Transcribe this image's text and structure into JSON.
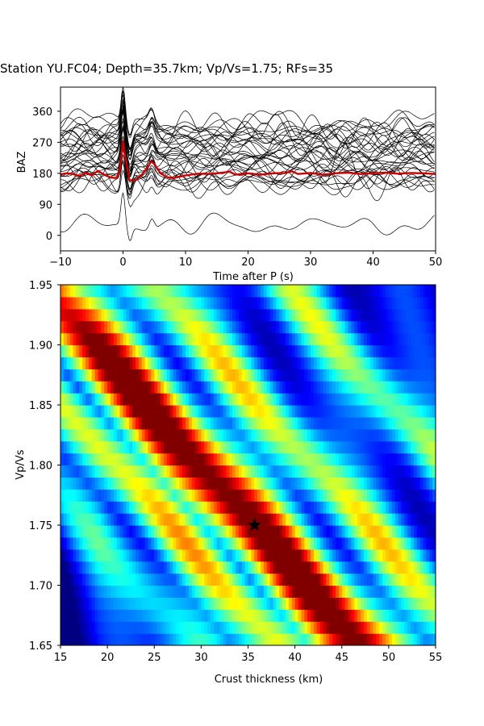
{
  "title": "Station YU.FC04; Depth=35.7km; Vp/Vs=1.75; RFs=35",
  "chart_data": [
    {
      "type": "line",
      "name": "rf-stack",
      "xlabel": "Time after P (s)",
      "ylabel": "BAZ",
      "xlim": [
        -10,
        50
      ],
      "ylim": [
        -45,
        430
      ],
      "xticks": [
        -10,
        0,
        10,
        20,
        30,
        40,
        50
      ],
      "yticks": [
        0,
        90,
        180,
        270,
        360
      ],
      "trace_count": 35,
      "trace_color": "#000000",
      "mean_color": "#cc0000",
      "mean_trace": {
        "x": [
          -10,
          -9,
          -8,
          -7,
          -6,
          -5,
          -4,
          -3,
          -2,
          -1,
          -0.5,
          0,
          0.5,
          1,
          2,
          3,
          4,
          4.5,
          5,
          6,
          7,
          8,
          10,
          12,
          14,
          16,
          17,
          18,
          20,
          22,
          24,
          26,
          27,
          28,
          30,
          32,
          34,
          36,
          38,
          40,
          42,
          44,
          46,
          48,
          50
        ],
        "y": [
          177,
          180,
          178,
          172,
          181,
          174,
          187,
          176,
          168,
          166,
          190,
          272,
          215,
          160,
          160,
          176,
          198,
          215,
          207,
          180,
          169,
          166,
          174,
          179,
          178,
          182,
          185,
          176,
          180,
          176,
          180,
          181,
          186,
          178,
          181,
          176,
          180,
          182,
          178,
          180,
          182,
          179,
          181,
          180,
          178
        ]
      }
    },
    {
      "type": "heatmap",
      "name": "hk-stack",
      "xlabel": "Crust thickness (km)",
      "ylabel": "Vp/Vs",
      "xlim": [
        15,
        55
      ],
      "ylim": [
        1.65,
        1.95
      ],
      "xticks": [
        15,
        20,
        25,
        30,
        35,
        40,
        45,
        50,
        55
      ],
      "yticks": [
        1.65,
        1.7,
        1.75,
        1.8,
        1.85,
        1.9,
        1.95
      ],
      "colormap": "jet",
      "best_fit": {
        "H": 35.7,
        "k": 1.75
      }
    }
  ]
}
